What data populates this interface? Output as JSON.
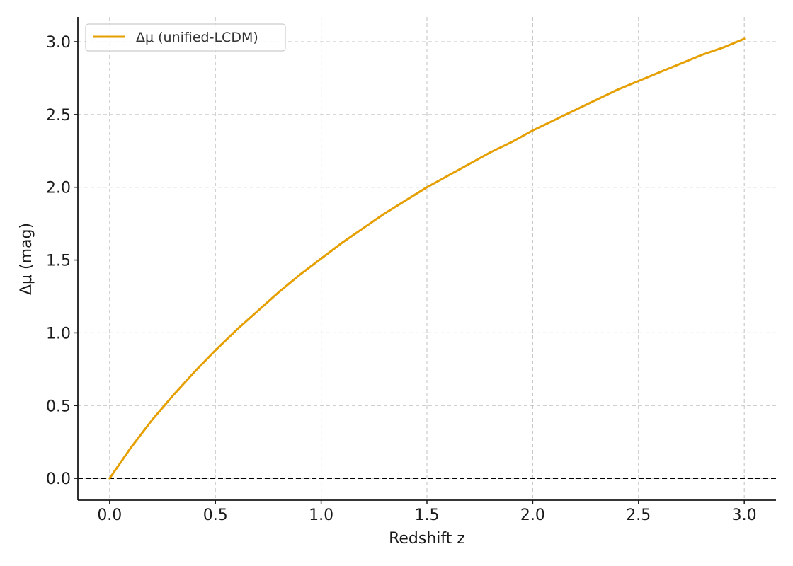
{
  "chart_data": {
    "type": "line",
    "title": "",
    "xlabel": "Redshift z",
    "ylabel": "Δμ (mag)",
    "xlim": [
      -0.15,
      3.15
    ],
    "ylim": [
      -0.15,
      3.17
    ],
    "x_ticks": [
      0.0,
      0.5,
      1.0,
      1.5,
      2.0,
      2.5,
      3.0
    ],
    "x_tick_labels": [
      "0.0",
      "0.5",
      "1.0",
      "1.5",
      "2.0",
      "2.5",
      "3.0"
    ],
    "y_ticks": [
      0.0,
      0.5,
      1.0,
      1.5,
      2.0,
      2.5,
      3.0
    ],
    "y_tick_labels": [
      "0.0",
      "0.5",
      "1.0",
      "1.5",
      "2.0",
      "2.5",
      "3.0"
    ],
    "grid": true,
    "legend_position": "top-left",
    "reference_line": {
      "y": 0.0,
      "style": "dashed",
      "color": "#000000"
    },
    "series": [
      {
        "name": "Δμ (unified-LCDM)",
        "color": "#e69f00",
        "x": [
          0.0,
          0.1,
          0.2,
          0.3,
          0.4,
          0.5,
          0.6,
          0.7,
          0.8,
          0.9,
          1.0,
          1.1,
          1.2,
          1.3,
          1.4,
          1.5,
          1.6,
          1.7,
          1.8,
          1.9,
          2.0,
          2.1,
          2.2,
          2.3,
          2.4,
          2.5,
          2.6,
          2.7,
          2.8,
          2.9,
          3.0
        ],
        "y": [
          0.0,
          0.21,
          0.4,
          0.57,
          0.73,
          0.88,
          1.02,
          1.15,
          1.28,
          1.4,
          1.51,
          1.62,
          1.72,
          1.82,
          1.91,
          2.0,
          2.08,
          2.16,
          2.24,
          2.31,
          2.39,
          2.46,
          2.53,
          2.6,
          2.67,
          2.73,
          2.79,
          2.85,
          2.91,
          2.96,
          3.02
        ]
      }
    ]
  }
}
